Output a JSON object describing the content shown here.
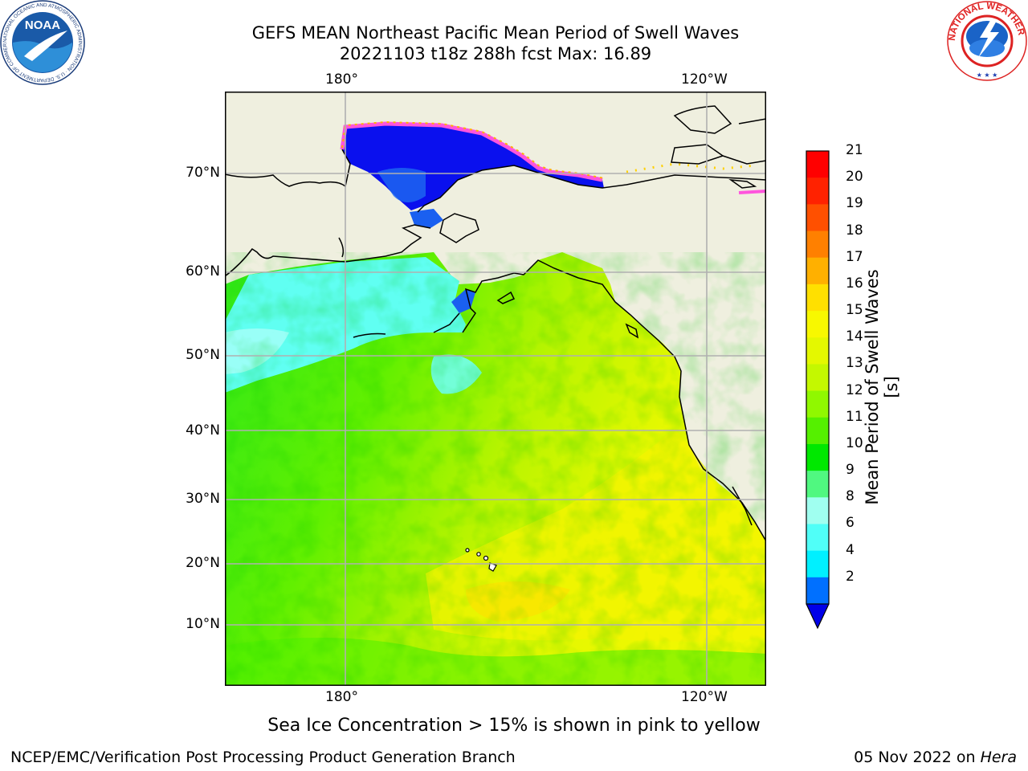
{
  "header": {
    "title_line1": "GEFS MEAN Northeast Pacific Mean Period of Swell Waves",
    "title_line2": "20221103 t18z 288h fcst   Max: 16.89"
  },
  "map": {
    "top_lon_ticks": [
      "180°",
      "120°W"
    ],
    "bottom_lon_ticks": [
      "180°",
      "120°W"
    ],
    "lat_ticks": [
      "70°N",
      "60°N",
      "50°N",
      "40°N",
      "30°N",
      "20°N",
      "10°N"
    ],
    "colors": {
      "land": "#efefdf",
      "grid": "#b0b0b0",
      "ice_deep": "#0010f0",
      "ice_edge_pink": "#ff55dd",
      "ice_edge_yellow": "#ffe000"
    }
  },
  "colorbar": {
    "label": "Mean Period of Swell Waves [s]",
    "tick_labels": [
      "21",
      "20",
      "19",
      "18",
      "17",
      "16",
      "15",
      "14",
      "13",
      "12",
      "11",
      "10",
      "9",
      "8",
      "6",
      "4",
      "2"
    ],
    "colors": [
      "#ff0000",
      "#ff2200",
      "#ff5000",
      "#ff8000",
      "#ffb000",
      "#ffe000",
      "#f8f800",
      "#e4f800",
      "#c4f800",
      "#90f800",
      "#55f000",
      "#00e800",
      "#50f880",
      "#a0fff0",
      "#50fff8",
      "#00f0ff",
      "#0070ff"
    ],
    "extend_color": "#0000e8"
  },
  "caption": "Sea Ice Concentration > 15% is shown in pink to yellow",
  "footer": {
    "left": "NCEP/EMC/Verification Post Processing Product Generation Branch",
    "date": "05 Nov 2022 on",
    "machine": "Hera"
  },
  "logos": {
    "noaa_text": "NOAA",
    "noaa_ring_text": "NATIONAL OCEANIC AND ATMOSPHERIC ADMINISTRATION · U.S. DEPARTMENT OF COMMERCE",
    "nws_ring_text": "NATIONAL WEATHER SERVICE"
  }
}
